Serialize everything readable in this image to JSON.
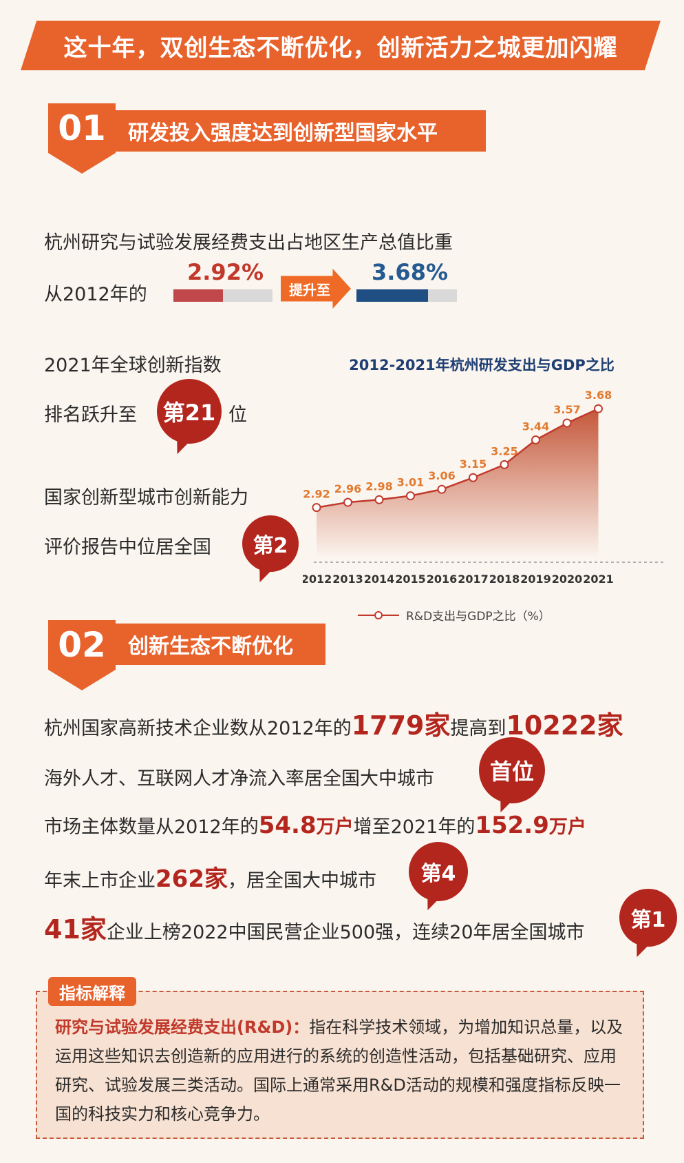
{
  "banner": {
    "title": "这十年，双创生态不断优化，创新活力之城更加闪耀"
  },
  "section1": {
    "number": "01",
    "title": "研发投入强度达到创新型国家水平",
    "rd_line1": "杭州研究与试验发展经费支出占地区生产总值比重",
    "rd_from_prefix": "从2012年的",
    "rd_from_value": "2.92%",
    "rd_arrow_label": "提升至",
    "rd_to_value": "3.68%",
    "rd_from_fill": 0.5,
    "rd_to_fill": 0.71,
    "gii_line1": "2021年全球创新指数",
    "gii_line2_prefix": "排名跃升至",
    "gii_badge": "第21",
    "gii_line2_suffix": "位",
    "city_line1": "国家创新型城市创新能力",
    "city_line2": "评价报告中位居全国",
    "city_badge": "第2"
  },
  "chart_data": {
    "type": "area",
    "title": "2012-2021年杭州研发支出与GDP之比",
    "categories": [
      "2012",
      "2013",
      "2014",
      "2015",
      "2016",
      "2017",
      "2018",
      "2019",
      "2020",
      "2021"
    ],
    "series": [
      {
        "name": "R&D支出与GDP之比（%）",
        "values": [
          2.92,
          2.96,
          2.98,
          3.01,
          3.06,
          3.15,
          3.25,
          3.44,
          3.57,
          3.68
        ]
      }
    ],
    "value_labels": [
      "2.92",
      "2.96",
      "2.98",
      "3.01",
      "3.06",
      "3.15",
      "3.25",
      "3.44",
      "3.57",
      "3.68"
    ],
    "legend_position": "bottom",
    "grid": false,
    "colors": {
      "line": "#c0392b",
      "label": "#e07a2f",
      "area_top": "#c4573a",
      "area_bottom": "#fbf5ef",
      "title": "#1f3f73"
    }
  },
  "section2": {
    "number": "02",
    "title": "创新生态不断优化",
    "line1": {
      "t1": "杭州国家高新技术企业数从2012年的",
      "v1": "1779家",
      "t2": "提高到",
      "v2": "10222家"
    },
    "line2": {
      "t1": "海外人才、互联网人才净流入率居全国大中城市",
      "badge": "首位"
    },
    "line3": {
      "t1": "市场主体数量从2012年的",
      "v1": "54.8",
      "u1": "万户",
      "t2": "增至2021年的",
      "v2": "152.9",
      "u2": "万户"
    },
    "line4": {
      "t1": "年末上市企业",
      "v1": "262家",
      "t2": "，居全国大中城市",
      "badge": "第4"
    },
    "line5": {
      "v1": "41家",
      "t1": "企业上榜2022中国民营企业500强，连续20年居全国城市",
      "badge": "第1"
    }
  },
  "note": {
    "tag": "指标解释",
    "term": "研究与试验发展经费支出(R&D)：",
    "text": "指在科学技术领域，为增加知识总量，以及运用这些知识去创造新的应用进行的系统的创造性活动，包括基础研究、应用研究、试验发展三类活动。国际上通常采用R&D活动的规模和强度指标反映一国的科技实力和核心竞争力。"
  }
}
